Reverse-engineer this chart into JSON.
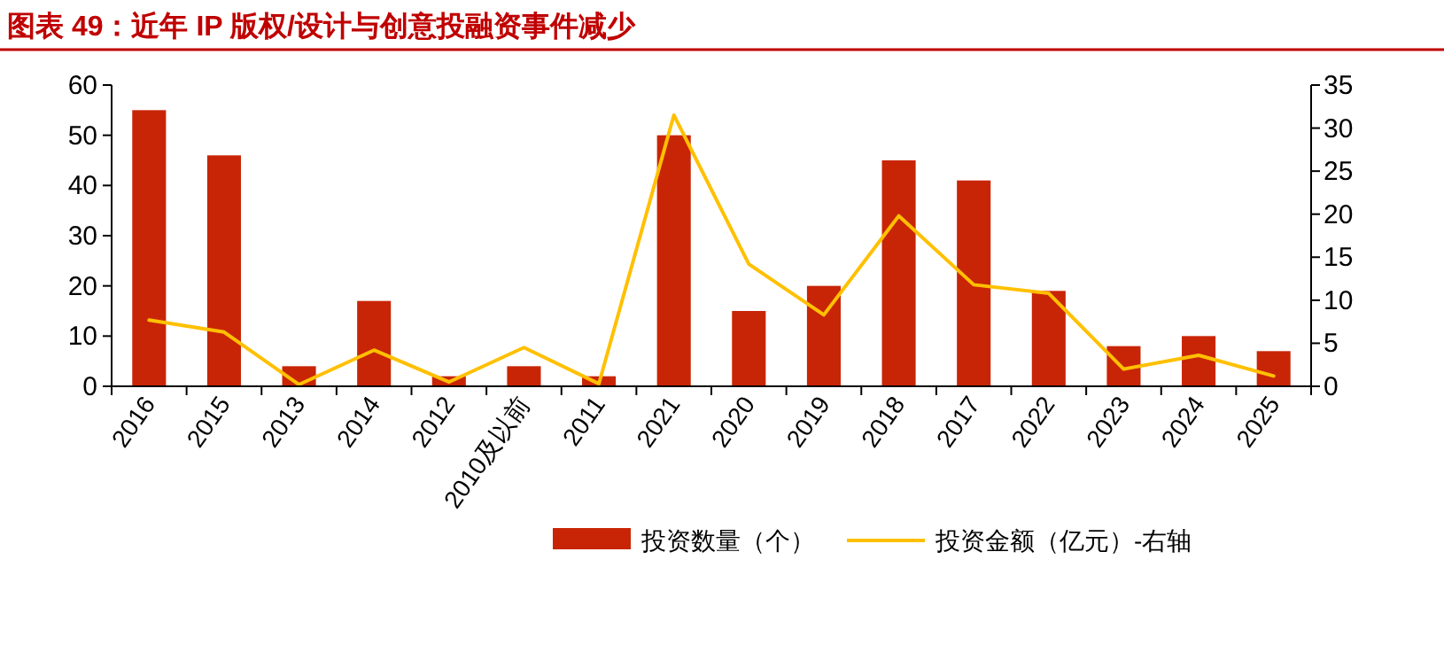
{
  "chart_data": {
    "type": "bar",
    "title": "图表 49：近年 IP 版权/设计与创意投融资事件减少",
    "categories": [
      "2016",
      "2015",
      "2013",
      "2014",
      "2012",
      "2010及以前",
      "2011",
      "2021",
      "2020",
      "2019",
      "2018",
      "2017",
      "2022",
      "2023",
      "2024",
      "2025"
    ],
    "series": [
      {
        "name": "投资数量（个）",
        "color": "#c82506",
        "values": [
          55,
          46,
          4,
          17,
          2,
          4,
          2,
          50,
          15,
          20,
          45,
          41,
          19,
          8,
          10,
          7
        ]
      },
      {
        "name": "投资金额（亿元）-右轴",
        "type": "line",
        "axis": "y2",
        "color": "#ffc000",
        "values": [
          7.7,
          6.3,
          0.2,
          4.2,
          0.5,
          4.5,
          0.3,
          31.5,
          14.2,
          8.3,
          19.8,
          11.8,
          10.8,
          2,
          3.6,
          1.2
        ]
      }
    ],
    "ylim": [
      0,
      60
    ],
    "yticks": [
      0,
      10,
      20,
      30,
      40,
      50,
      60
    ],
    "y2lim": [
      0,
      35
    ],
    "y2ticks": [
      0,
      5,
      10,
      15,
      20,
      25,
      30,
      35
    ],
    "grid": false,
    "legend": "bottom"
  }
}
